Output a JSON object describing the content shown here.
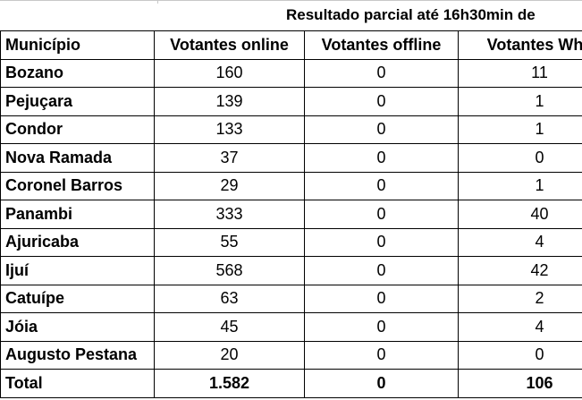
{
  "caption": "Resultado parcial até 16h30min de",
  "headers": {
    "municipio": "Município",
    "online": "Votantes online",
    "offline": "Votantes offline",
    "whatsapp": "Votantes Wha"
  },
  "rows": [
    {
      "name": "Bozano",
      "online": "160",
      "offline": "0",
      "whatsapp": "11"
    },
    {
      "name": "Pejuçara",
      "online": "139",
      "offline": "0",
      "whatsapp": "1"
    },
    {
      "name": "Condor",
      "online": "133",
      "offline": "0",
      "whatsapp": "1"
    },
    {
      "name": "Nova Ramada",
      "online": "37",
      "offline": "0",
      "whatsapp": "0"
    },
    {
      "name": "Coronel Barros",
      "online": "29",
      "offline": "0",
      "whatsapp": "1"
    },
    {
      "name": "Panambi",
      "online": "333",
      "offline": "0",
      "whatsapp": "40"
    },
    {
      "name": "Ajuricaba",
      "online": "55",
      "offline": "0",
      "whatsapp": "4"
    },
    {
      "name": "Ijuí",
      "online": "568",
      "offline": "0",
      "whatsapp": "42"
    },
    {
      "name": "Catuípe",
      "online": "63",
      "offline": "0",
      "whatsapp": "2"
    },
    {
      "name": "Jóia",
      "online": "45",
      "offline": "0",
      "whatsapp": "4"
    },
    {
      "name": "Augusto Pestana",
      "online": "20",
      "offline": "0",
      "whatsapp": "0"
    }
  ],
  "total": {
    "name": "Total",
    "online": "1.582",
    "offline": "0",
    "whatsapp": "106"
  }
}
